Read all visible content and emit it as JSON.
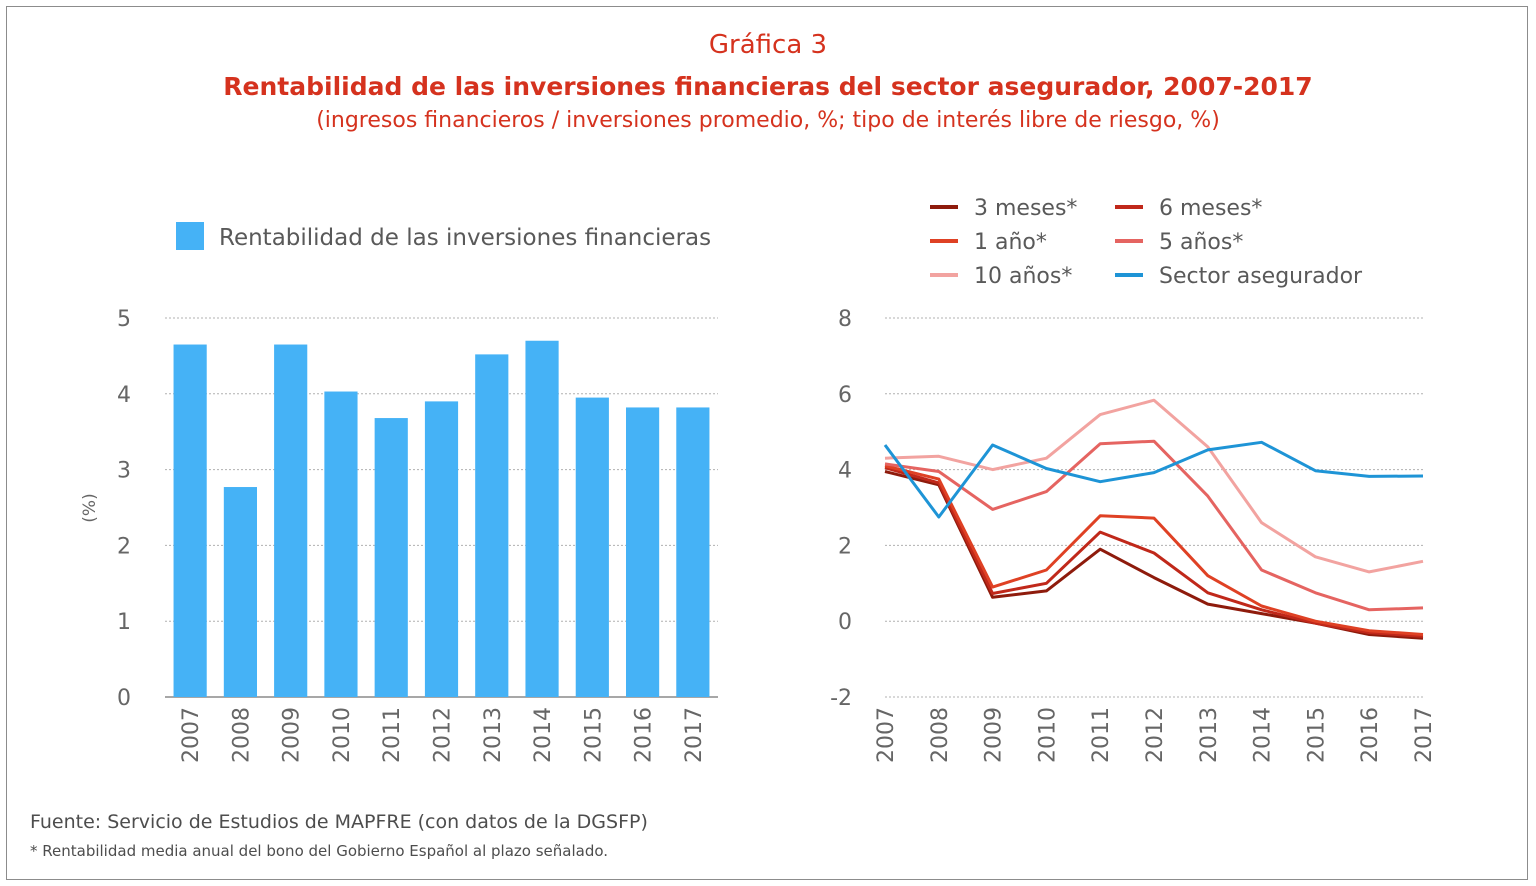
{
  "header": {
    "title": "Gráfica 3",
    "subtitle": "Rentabilidad de las inversiones financieras del sector asegurador, 2007-2017",
    "note": "(ingresos financieros / inversiones promedio, %; tipo de interés libre de riesgo, %)"
  },
  "footer": {
    "source": "Fuente: Servicio de Estudios de MAPFRE (con datos de la DGSFP)",
    "footnote": "* Rentabilidad media anual del bono del Gobierno Español al plazo señalado."
  },
  "colors": {
    "bar": "#45b2f6",
    "grid": "#b0b0b0",
    "axis": "#8a8a8a",
    "tick_text": "#666666",
    "title": "#d5321e"
  },
  "chart_data": [
    {
      "type": "bar",
      "categories": [
        "2007",
        "2008",
        "2009",
        "2010",
        "2011",
        "2012",
        "2013",
        "2014",
        "2015",
        "2016",
        "2017"
      ],
      "series": [
        {
          "name": "Rentabilidad de las inversiones financieras",
          "color": "#45b2f6",
          "values": [
            4.65,
            2.77,
            4.65,
            4.03,
            3.68,
            3.9,
            4.52,
            4.7,
            3.95,
            3.82,
            3.82
          ]
        }
      ],
      "ylabel": "(%)",
      "ylim": [
        0,
        5
      ],
      "yticks": [
        "0",
        "1",
        "2",
        "3",
        "4",
        "5"
      ],
      "grid": true,
      "legend_position": "top"
    },
    {
      "type": "line",
      "x": [
        "2007",
        "2008",
        "2009",
        "2010",
        "2011",
        "2012",
        "2013",
        "2014",
        "2015",
        "2016",
        "2017"
      ],
      "series": [
        {
          "name": "3 meses*",
          "color": "#8e1b0c",
          "values": [
            3.95,
            3.6,
            0.63,
            0.8,
            1.9,
            1.15,
            0.45,
            0.2,
            -0.05,
            -0.35,
            -0.45
          ]
        },
        {
          "name": "6 meses*",
          "color": "#c0281a",
          "values": [
            4.05,
            3.65,
            0.73,
            1.0,
            2.35,
            1.8,
            0.75,
            0.3,
            -0.05,
            -0.3,
            -0.4
          ]
        },
        {
          "name": "1 año*",
          "color": "#df4124",
          "values": [
            4.1,
            3.75,
            0.9,
            1.35,
            2.78,
            2.72,
            1.2,
            0.4,
            0.0,
            -0.25,
            -0.35
          ]
        },
        {
          "name": "5 años*",
          "color": "#e56461",
          "values": [
            4.15,
            3.95,
            2.95,
            3.42,
            4.68,
            4.75,
            3.3,
            1.35,
            0.75,
            0.3,
            0.35
          ]
        },
        {
          "name": "10 años*",
          "color": "#f2a3a0",
          "values": [
            4.3,
            4.35,
            4.0,
            4.3,
            5.45,
            5.83,
            4.6,
            2.6,
            1.7,
            1.3,
            1.58
          ]
        },
        {
          "name": "Sector asegurador",
          "color": "#1e94d6",
          "values": [
            4.65,
            2.75,
            4.65,
            4.03,
            3.68,
            3.92,
            4.52,
            4.72,
            3.97,
            3.82,
            3.83
          ]
        }
      ],
      "ylim": [
        -2,
        8
      ],
      "yticks": [
        "-2",
        "0",
        "2",
        "4",
        "6",
        "8"
      ],
      "grid": true,
      "legend_position": "top"
    }
  ]
}
